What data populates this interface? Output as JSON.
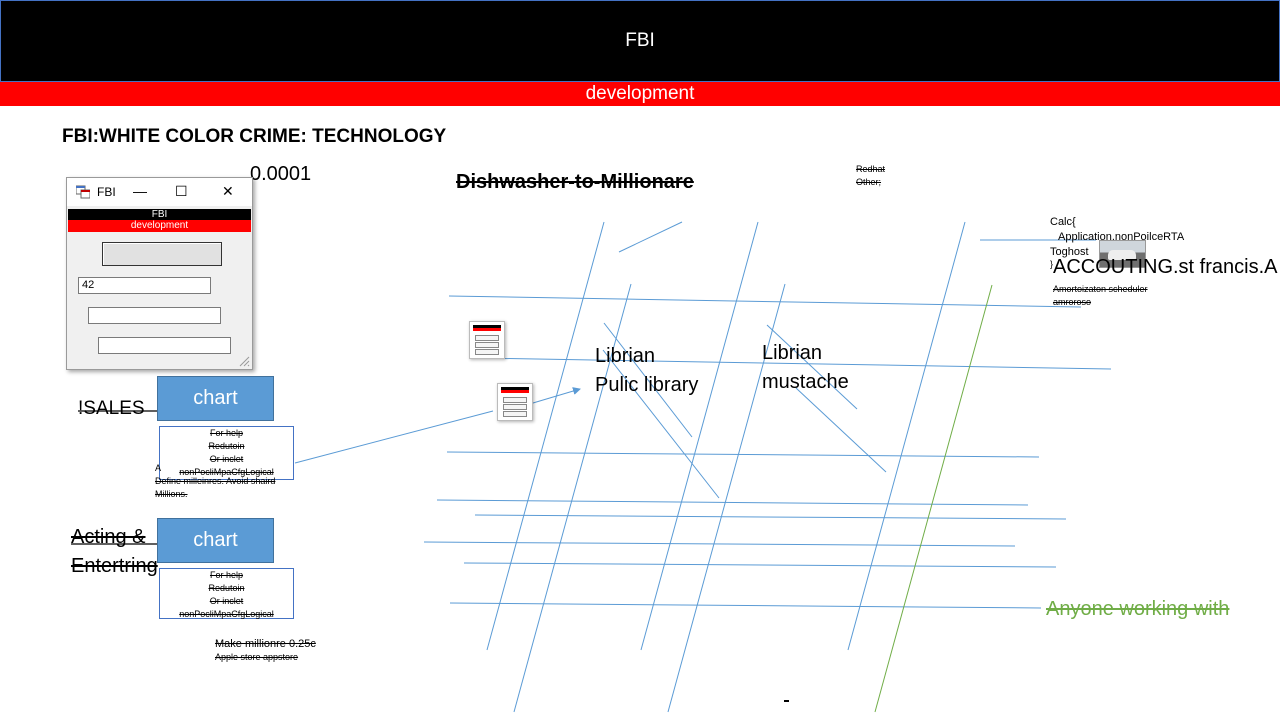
{
  "header": {
    "title": "FBI",
    "subtitle": "development"
  },
  "heading": "FBI:WHITE COLOR CRIME: TECHNOLOGY",
  "small_value": "0.0001",
  "diagram_title": "Dishwasher-to-Millionare",
  "window": {
    "title": "FBI",
    "banner_title": "FBI",
    "banner_subtitle": "development",
    "input_value": "42",
    "controls": {
      "minimize": "—",
      "maximize": "☐",
      "close": "✕"
    }
  },
  "left_labels": {
    "sales": "!SALES",
    "acting_line1": "Acting &",
    "acting_line2": "Entertring"
  },
  "chart_buttons": {
    "top": "chart",
    "bottom": "chart"
  },
  "note_box": {
    "line1": "For help",
    "line2": "Redutoin",
    "line3": "Or inclet",
    "line4": "nonPocliMpaCfgLogical"
  },
  "define_note": {
    "prefix": "A",
    "line1": "Define milleinres. Avoid shaird",
    "line2": "Millions."
  },
  "make_millionaire": {
    "line1": "Make millionre 0.25c",
    "line2": "Apple store appstore"
  },
  "redhat_note": {
    "line1": "Redhat",
    "line2": "Other;"
  },
  "calc_block": {
    "line1": "Calc{",
    "line2": "Application.nonPoilceRTA",
    "line3": "Toghost",
    "line4": "}",
    "accounting": "ACCOUTING.st francis.A",
    "sub1": "Amortoizaton scheduler",
    "sub2": "amroroso"
  },
  "librarian_1": {
    "line1": "Librian",
    "line2": "Pulic library"
  },
  "librarian_2": {
    "line1": "Librian",
    "line2": "mustache"
  },
  "green_text": "Anyone working with",
  "colors": {
    "header_bg": "#000000",
    "accent_red": "#ff0000",
    "line_blue": "#5b9bd5",
    "chart_blue": "#5b9bd5",
    "green": "#70ad47"
  },
  "icons": {
    "window_app": "app-window-icon",
    "car": "car-photo"
  }
}
